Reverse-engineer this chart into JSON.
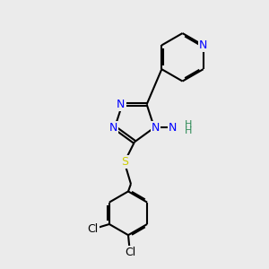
{
  "background_color": "#ebebeb",
  "bond_color": "#000000",
  "atom_colors": {
    "N": "#0000ff",
    "S": "#cccc00",
    "Cl": "#000000",
    "C": "#000000",
    "H_color": "#2e8b57"
  },
  "bond_width": 1.5,
  "dbo": 0.055,
  "figsize": [
    3.0,
    3.0
  ],
  "dpi": 100
}
